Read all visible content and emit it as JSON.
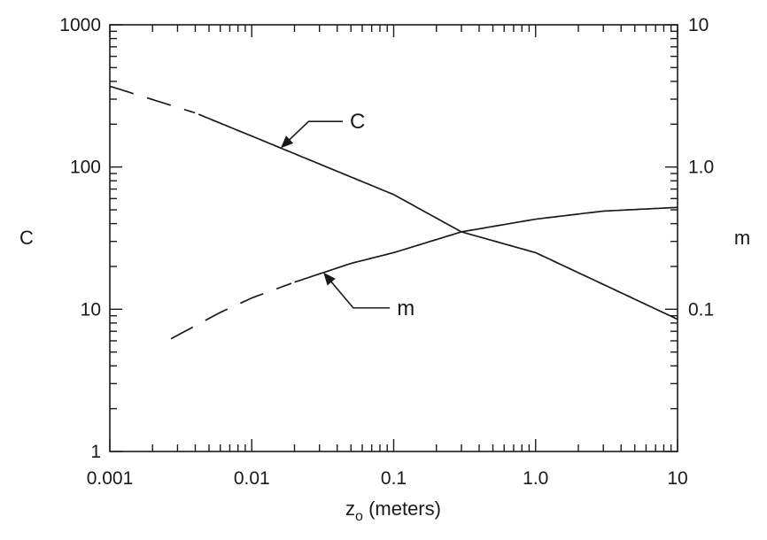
{
  "chart_data": {
    "type": "line",
    "x_scale": "log",
    "y_scale": "log",
    "y2_scale": "log",
    "xlim": [
      0.001,
      10
    ],
    "ylim": [
      1,
      1000
    ],
    "y2lim": [
      0.01,
      10
    ],
    "xlabel_main": "z",
    "xlabel_sub": "o",
    "xlabel_rest": " (meters)",
    "ylabel": "C",
    "y2label": "m",
    "x_tick_values": [
      0.001,
      0.01,
      0.1,
      1.0,
      10
    ],
    "x_tick_labels": [
      "0.001",
      "0.01",
      "0.1",
      "1.0",
      "10"
    ],
    "y_tick_values": [
      1,
      10,
      100,
      1000
    ],
    "y_tick_labels": [
      "1",
      "10",
      "100",
      "1000"
    ],
    "y2_tick_values": [
      0.1,
      1.0,
      10
    ],
    "y2_tick_labels": [
      "0.1",
      "1.0",
      "10"
    ],
    "grid": false,
    "series": [
      {
        "name": "C",
        "axis": "left",
        "color": "#1a1a1a",
        "dashed_until_x": 0.004,
        "x": [
          0.001,
          0.004,
          0.01,
          0.1,
          0.3,
          1.0,
          10
        ],
        "y": [
          370,
          240,
          165,
          64,
          35,
          25,
          8.5
        ]
      },
      {
        "name": "m",
        "axis": "right",
        "color": "#1a1a1a",
        "dashed_until_x": 0.02,
        "x": [
          0.0027,
          0.006,
          0.01,
          0.02,
          0.05,
          0.1,
          0.3,
          1.0,
          3.0,
          10
        ],
        "y": [
          0.062,
          0.095,
          0.12,
          0.155,
          0.21,
          0.25,
          0.35,
          0.43,
          0.49,
          0.52
        ]
      }
    ],
    "annotations": [
      {
        "text": "C",
        "series": "C",
        "target_x": 0.016
      },
      {
        "text": "m",
        "series": "m",
        "target_x": 0.032
      }
    ]
  }
}
